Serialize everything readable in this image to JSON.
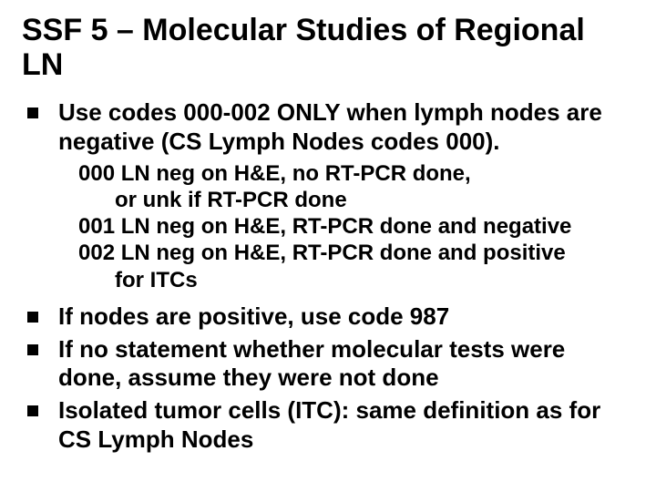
{
  "colors": {
    "background": "#ffffff",
    "text": "#000000",
    "bullet": "#000000"
  },
  "typography": {
    "family": "Arial",
    "title_fontsize_pt": 26,
    "body_fontsize_pt": 20,
    "sub_fontsize_pt": 18,
    "weight": "bold"
  },
  "title": "SSF 5 – Molecular Studies of Regional LN",
  "bullets": [
    {
      "text": "Use codes 000-002 ONLY when lymph nodes are negative (CS Lymph Nodes codes 000)."
    },
    {
      "text": "If nodes are positive, use code 987"
    },
    {
      "text": "If no statement whether molecular tests were done, assume they were not done"
    },
    {
      "text": "Isolated tumor cells (ITC): same definition as for CS Lymph Nodes"
    }
  ],
  "codes": {
    "line0a": "000  LN neg on H&E, no RT-PCR done,",
    "line0b": "or unk if RT-PCR done",
    "line1": "001  LN neg on H&E, RT-PCR done and negative",
    "line2a": "002  LN neg on H&E, RT-PCR done and positive",
    "line2b": "for ITCs"
  }
}
